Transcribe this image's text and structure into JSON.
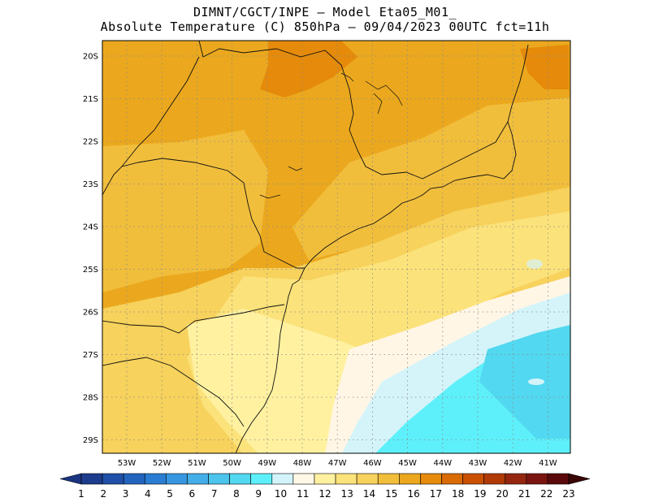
{
  "header": {
    "line1": "DIMNT/CGCT/INPE –  Model Eta05_M01_",
    "line2": "Absolute Temperature (C) 850hPa –  09/04/2023 00UTC fct=11h"
  },
  "axes": {
    "lat_labels": [
      "20S",
      "21S",
      "22S",
      "23S",
      "24S",
      "25S",
      "26S",
      "27S",
      "28S",
      "29S"
    ],
    "lon_labels": [
      "53W",
      "52W",
      "51W",
      "50W",
      "49W",
      "48W",
      "47W",
      "46W",
      "45W",
      "44W",
      "43W",
      "42W",
      "41W"
    ]
  },
  "colorbar": {
    "labels": [
      "1",
      "2",
      "3",
      "4",
      "5",
      "6",
      "7",
      "8",
      "9",
      "10",
      "11",
      "12",
      "13",
      "14",
      "15",
      "16",
      "17",
      "18",
      "19",
      "20",
      "21",
      "22",
      "23"
    ],
    "colors": [
      "#1e3c8c",
      "#2050a8",
      "#2364be",
      "#2a7dd2",
      "#3796e0",
      "#44aee8",
      "#4cc4ec",
      "#52d8f0",
      "#5ef0fa",
      "#d2f4fa",
      "#fff8e6",
      "#fff1a0",
      "#fbe27a",
      "#f7d25c",
      "#f1be3c",
      "#eba81e",
      "#e58a0a",
      "#d96a04",
      "#c95000",
      "#b03a08",
      "#942610",
      "#7a1410",
      "#5a0a0a"
    ],
    "over_color": "#3a0606",
    "under_color": "#1a3480"
  },
  "map": {
    "ocean_warm": "#f7d863",
    "ocean_pale": "#fff6e6",
    "ocean_light_cyan": "#d4f4fa",
    "ocean_cyan": "#5ef0fa",
    "ocean_deep": "#4ed8ec"
  }
}
